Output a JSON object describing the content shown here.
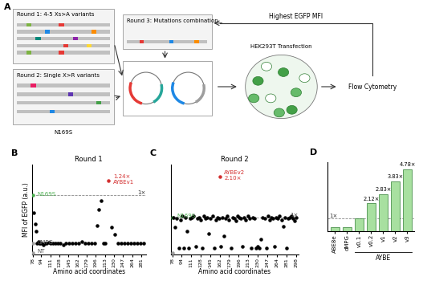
{
  "diagram": {
    "panel": "A",
    "round1": "Round 1: 4-5 Xs>A variants",
    "round2": "Round 2: Single X>R variants",
    "round2_note": "N169S",
    "round3": "Round 3: Mutations combination",
    "feedback": "Highest EGFP MFI",
    "transfection": "HEK293T Transfection",
    "readout": "Flow Cytometry"
  },
  "chart_data": [
    {
      "panel": "B",
      "type": "scatter",
      "title": "Round 1",
      "y_label": "MFI of EGFP (a.u.)",
      "x_label": "Amino acid coordinates",
      "xlim": [
        76,
        290
      ],
      "xticks": [
        78,
        94,
        111,
        128,
        145,
        162,
        179,
        196,
        213,
        230,
        247,
        264,
        281
      ],
      "ylim": [
        0,
        5
      ],
      "yticks": [],
      "tick_labels": "x",
      "series": [
        {
          "color": "#9e9e9e",
          "x": [
            78,
            78
          ],
          "values": [
            0.1,
            0.6
          ]
        },
        {
          "color": "#4caf50",
          "x": [
            78
          ],
          "values": [
            3.3
          ]
        },
        {
          "color": "#000000",
          "x": [
            80,
            82,
            84,
            86,
            88,
            90,
            92,
            95,
            98,
            101,
            104,
            108,
            112,
            116,
            120,
            125,
            130,
            135,
            140,
            146,
            152,
            158,
            164,
            170,
            176,
            182,
            188,
            194,
            198,
            202,
            206,
            210,
            214,
            226,
            232,
            238,
            244,
            250,
            256,
            262,
            268,
            274,
            280,
            286
          ],
          "values": [
            2.3,
            1.7,
            1.3,
            0.6,
            0.7,
            0.6,
            0.6,
            0.6,
            0.55,
            0.6,
            0.6,
            0.65,
            0.6,
            0.6,
            0.6,
            0.6,
            0.6,
            0.55,
            0.6,
            0.6,
            0.6,
            0.6,
            0.6,
            0.7,
            0.6,
            0.6,
            0.6,
            0.6,
            1.6,
            2.5,
            3.0,
            0.6,
            0.6,
            1.5,
            1.1,
            0.6,
            0.6,
            0.6,
            0.6,
            0.6,
            0.6,
            0.6,
            0.6,
            0.6
          ]
        },
        {
          "color": "#d32f2f",
          "x": [
            220
          ],
          "values": [
            4.1
          ]
        }
      ],
      "reference_line": {
        "value": 3.3,
        "label": "1×"
      },
      "annotations": [
        {
          "text": "NT",
          "x": 78,
          "y": 0.1,
          "color": "#555555"
        },
        {
          "text": "dMPG",
          "x": 78,
          "y": 0.6,
          "color": "#555555"
        },
        {
          "text": "N169S",
          "x": 78,
          "y": 3.3,
          "color": "#4caf50"
        },
        {
          "text": "1.24×\nAYBEv1",
          "x": 220,
          "y": 4.1,
          "color": "#d32f2f"
        }
      ]
    },
    {
      "panel": "C",
      "type": "scatter",
      "title": "Round 2",
      "x_label": "Amino acid coordinates",
      "xlim": [
        76,
        302
      ],
      "xticks": [
        78,
        94,
        111,
        128,
        145,
        162,
        179,
        196,
        213,
        230,
        247,
        264,
        281,
        298
      ],
      "ylim": [
        0,
        7
      ],
      "yticks": [],
      "tick_labels": "x",
      "series": [
        {
          "color": "#9e9e9e",
          "x": [
            78
          ],
          "values": [
            0.1
          ]
        },
        {
          "color": "#4caf50",
          "x": [
            78
          ],
          "values": [
            2.9
          ]
        },
        {
          "color": "#000000",
          "x": [
            80,
            83,
            86,
            89,
            92,
            95,
            98,
            101,
            104,
            107,
            110,
            113,
            116,
            119,
            122,
            125,
            128,
            131,
            134,
            137,
            140,
            143,
            146,
            149,
            152,
            155,
            158,
            161,
            164,
            167,
            170,
            173,
            176,
            179,
            182,
            185,
            188,
            191,
            194,
            197,
            200,
            203,
            206,
            209,
            212,
            215,
            218,
            221,
            224,
            227,
            230,
            233,
            236,
            239,
            242,
            245,
            248,
            251,
            254,
            257,
            260,
            263,
            266,
            269,
            272,
            275,
            278,
            281,
            284,
            287,
            290,
            293,
            296,
            299
          ],
          "values": [
            2.9,
            2.1,
            2.8,
            0.5,
            2.7,
            3.0,
            0.5,
            2.9,
            1.8,
            0.5,
            2.8,
            2.9,
            3.0,
            0.6,
            2.8,
            2.9,
            2.7,
            0.5,
            3.0,
            2.8,
            2.9,
            1.6,
            2.8,
            3.0,
            0.5,
            2.7,
            2.9,
            2.8,
            0.6,
            2.9,
            1.4,
            2.8,
            3.0,
            2.7,
            0.5,
            2.9,
            2.8,
            2.6,
            3.0,
            2.9,
            2.8,
            0.6,
            2.9,
            2.7,
            3.0,
            2.8,
            0.5,
            2.9,
            2.8,
            0.5,
            0.6,
            0.5,
            1.2,
            2.9,
            2.8,
            0.5,
            3.0,
            2.7,
            2.9,
            2.8,
            0.6,
            2.9,
            2.8,
            3.0,
            2.7,
            2.2,
            2.9,
            0.5,
            2.8,
            2.9,
            3.0,
            2.8,
            2.6,
            2.9
          ]
        },
        {
          "color": "#d32f2f",
          "x": [
            162
          ],
          "values": [
            6.1
          ]
        }
      ],
      "reference_line": {
        "value": 2.9,
        "label": "1×"
      },
      "annotations": [
        {
          "text": "N169S",
          "x": 78,
          "y": 2.9,
          "color": "#4caf50"
        },
        {
          "text": "AYBEv2\n2.10×",
          "x": 162,
          "y": 6.1,
          "color": "#d32f2f"
        }
      ]
    },
    {
      "panel": "D",
      "type": "bar",
      "categories": [
        "ABE8e",
        "dMPG",
        "v0.1",
        "v0.2",
        "v1",
        "v2",
        "v3"
      ],
      "values": [
        0.5,
        0.5,
        1.6,
        3.4,
        4.5,
        6.1,
        7.6
      ],
      "color": "#a8e0a0",
      "ylim": [
        0,
        8.5
      ],
      "yticks": [],
      "tick_labels": "x",
      "reference_line": {
        "value": 1.6,
        "label": "1×"
      },
      "fold_labels": [
        null,
        null,
        null,
        "2.12×",
        "2.83×",
        "3.83×",
        "4.78×"
      ],
      "group": {
        "label": "AYBE",
        "categories": [
          "v0.1",
          "v0.2",
          "v1",
          "v2",
          "v3"
        ]
      }
    }
  ]
}
